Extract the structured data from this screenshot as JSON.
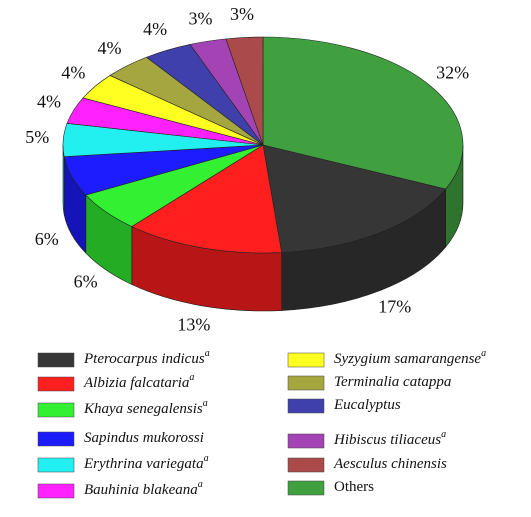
{
  "chart_data": {
    "type": "pie3d",
    "categories": [
      "Pterocarpus indicus",
      "Albizia falcataria",
      "Khaya senegalensis",
      "Sapindus mukorossi",
      "Erythrina variegata",
      "Bauhinia blakeana",
      "Syzygium samarangense",
      "Terminalia catappa",
      "Eucalyptus",
      "Hibiscus tiliaceus",
      "Aesculus chinensis",
      "Others"
    ],
    "label_notes": [
      "a",
      "a",
      "a",
      null,
      "a",
      "a",
      "a",
      null,
      null,
      "a",
      null,
      null
    ],
    "italic": [
      true,
      true,
      true,
      true,
      true,
      true,
      true,
      true,
      true,
      true,
      true,
      false
    ],
    "values": [
      17,
      13,
      6,
      6,
      5,
      4,
      4,
      4,
      4,
      3,
      3,
      32
    ],
    "value_labels": [
      "17%",
      "13%",
      "6%",
      "6%",
      "5%",
      "4%",
      "4%",
      "4%",
      "4%",
      "3%",
      "3%",
      "32%"
    ],
    "colors": [
      "#363636",
      "#ff1f1f",
      "#33f033",
      "#1c1cff",
      "#22f0f0",
      "#ff22ff",
      "#ffff22",
      "#a6a640",
      "#4040ac",
      "#a444b4",
      "#aa4a4a",
      "#40a040"
    ],
    "legend": "bottom"
  }
}
